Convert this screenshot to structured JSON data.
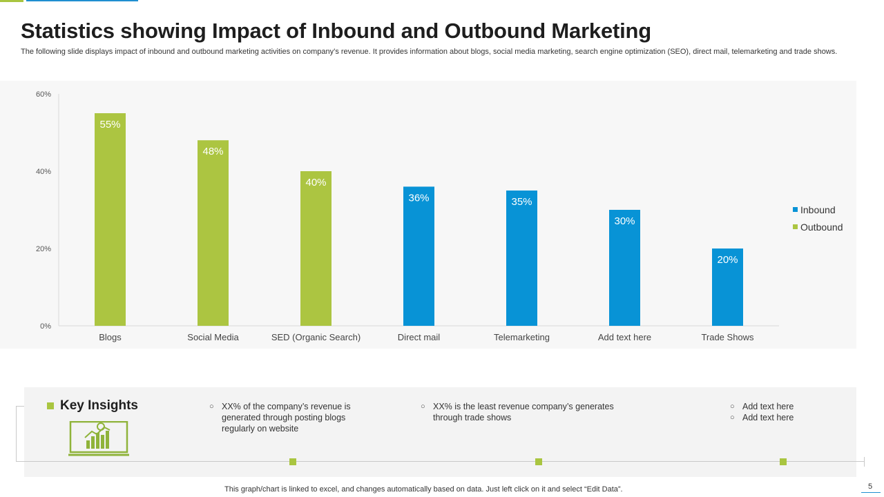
{
  "header": {
    "title": "Statistics showing Impact of Inbound and Outbound Marketing",
    "subtitle": "The following slide displays impact of inbound and outbound marketing activities on company’s revenue. It provides information about blogs, social media marketing, search engine optimization (SEO), direct mail, telemarketing and trade shows."
  },
  "colors": {
    "inbound": "#0893d6",
    "outbound": "#acc541",
    "accent_green": "#a9c540",
    "accent_blue": "#1f8fd0"
  },
  "chart_data": {
    "type": "bar",
    "categories": [
      "Blogs",
      "Social Media",
      "SED (Organic Search)",
      "Direct mail",
      "Telemarketing",
      "Add text here",
      "Trade Shows"
    ],
    "values": [
      55,
      48,
      40,
      36,
      35,
      30,
      20
    ],
    "data_labels": [
      "55%",
      "48%",
      "40%",
      "36%",
      "35%",
      "30%",
      "20%"
    ],
    "series_membership": [
      "Outbound",
      "Outbound",
      "Outbound",
      "Inbound",
      "Inbound",
      "Inbound",
      "Inbound"
    ],
    "series": [
      {
        "name": "Inbound",
        "color": "#0893d6"
      },
      {
        "name": "Outbound",
        "color": "#acc541"
      }
    ],
    "y_ticks": [
      "0%",
      "20%",
      "40%",
      "60%"
    ],
    "ylim": [
      0,
      60
    ],
    "grid": false,
    "legend_position": "right"
  },
  "insights": {
    "title": "Key Insights",
    "icon": "growth-chart-presentation-icon",
    "col1": {
      "bullet": "○",
      "text": "XX%  of the company’s revenue  is\ngenerated through  posting blogs\nregularly  on website"
    },
    "col2": {
      "bullet": "○",
      "text": "XX%  is the least revenue  company’s generates\nthrough trade shows"
    },
    "col3": [
      {
        "bullet": "○",
        "text": "Add text here"
      },
      {
        "bullet": "○",
        "text": "Add text here"
      }
    ]
  },
  "footer": {
    "note": "This graph/chart is linked to excel,  and changes automatically based on data. Just left click on it and select “Edit Data”.",
    "page_number": "5"
  }
}
